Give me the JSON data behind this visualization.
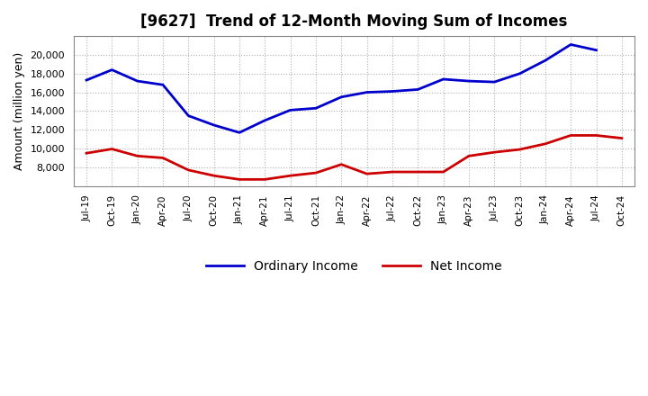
{
  "title": "[9627]  Trend of 12-Month Moving Sum of Incomes",
  "ylabel": "Amount (million yen)",
  "background_color": "#ffffff",
  "grid_color": "#b0b0b0",
  "ordinary_income_color": "#0000cc",
  "net_income_color": "#cc0000",
  "legend_labels": [
    "Ordinary Income",
    "Net Income"
  ],
  "x_labels": [
    "Jul-19",
    "Oct-19",
    "Jan-20",
    "Apr-20",
    "Jul-20",
    "Oct-20",
    "Jan-21",
    "Apr-21",
    "Jul-21",
    "Oct-21",
    "Jan-22",
    "Apr-22",
    "Jul-22",
    "Oct-22",
    "Jan-23",
    "Apr-23",
    "Jul-23",
    "Oct-23",
    "Jan-24",
    "Apr-24",
    "Jul-24",
    "Oct-24"
  ],
  "ordinary_income": [
    17300,
    18400,
    17200,
    16800,
    13500,
    12500,
    11700,
    13000,
    14100,
    14300,
    15500,
    16000,
    16100,
    16300,
    17400,
    17200,
    17100,
    18000,
    19400,
    21100,
    20500,
    null
  ],
  "net_income": [
    9500,
    9950,
    9200,
    9000,
    7700,
    7100,
    6700,
    6700,
    7100,
    7400,
    8300,
    7300,
    7500,
    7500,
    7500,
    9200,
    9600,
    9900,
    10500,
    11400,
    11400,
    11100
  ],
  "ylim_min": 6000,
  "ylim_max": 22000,
  "yticks": [
    8000,
    10000,
    12000,
    14000,
    16000,
    18000,
    20000
  ]
}
